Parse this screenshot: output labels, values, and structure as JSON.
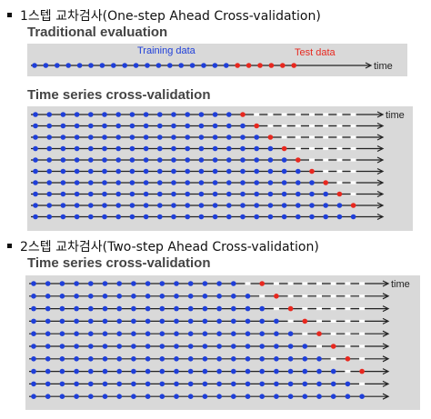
{
  "sections": [
    {
      "heading": "1스텝 교차검사(One-step Ahead Cross-validation)",
      "traditional": {
        "title": "Traditional evaluation",
        "training_label": "Training data",
        "test_label": "Test data",
        "time_label": "time",
        "train_count": 18,
        "test_count": 6
      },
      "cv": {
        "title": "Time series cross-validation",
        "time_label": "time",
        "rows": 10,
        "points_per_row": 24,
        "first_test_index": 15,
        "horizon": 1
      }
    },
    {
      "heading": "2스텝 교차검사(Two-step Ahead Cross-validation)",
      "cv": {
        "title": "Time series cross-validation",
        "time_label": "time",
        "rows": 10,
        "points_per_row": 24,
        "first_test_index": 16,
        "horizon": 2
      }
    }
  ],
  "colors": {
    "training": "#1f3fd9",
    "test": "#e8281f",
    "unused": "#ffffff",
    "panel": "#d9d9d9",
    "axis": "#222222"
  }
}
